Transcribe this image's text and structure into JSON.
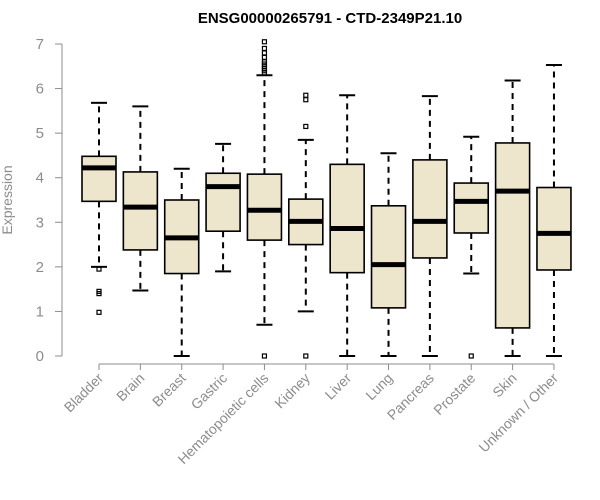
{
  "chart_data": {
    "type": "box",
    "title": "ENSG00000265791 - CTD-2349P21.10",
    "xlabel": "",
    "ylabel": "Expression",
    "ylim": [
      0,
      7
    ],
    "yticks": [
      0,
      1,
      2,
      3,
      4,
      5,
      6,
      7
    ],
    "grid": false,
    "box_color": "#ede6cd",
    "categories": [
      "Bladder",
      "Brain",
      "Breast",
      "Gastric",
      "Hematopoietic cells",
      "Kidney",
      "Liver",
      "Lung",
      "Pancreas",
      "Prostate",
      "Skin",
      "Unknown / Other"
    ],
    "boxes": [
      {
        "min": 2.0,
        "q1": 3.47,
        "median": 4.22,
        "q3": 4.48,
        "max": 5.68,
        "outliers": [
          1.95,
          1.45,
          1.4,
          0.98
        ]
      },
      {
        "min": 1.47,
        "q1": 2.38,
        "median": 3.34,
        "q3": 4.13,
        "max": 5.6,
        "outliers": []
      },
      {
        "min": 0.0,
        "q1": 1.85,
        "median": 2.65,
        "q3": 3.5,
        "max": 4.2,
        "outliers": []
      },
      {
        "min": 1.9,
        "q1": 2.8,
        "median": 3.8,
        "q3": 4.1,
        "max": 4.76,
        "outliers": []
      },
      {
        "min": 0.7,
        "q1": 2.6,
        "median": 3.27,
        "q3": 4.08,
        "max": 6.3,
        "outliers": [
          7.05,
          6.9,
          6.8,
          6.7,
          6.6,
          6.55,
          6.5,
          6.45,
          6.4,
          6.35,
          0.0
        ]
      },
      {
        "min": 1.0,
        "q1": 2.5,
        "median": 3.02,
        "q3": 3.52,
        "max": 4.85,
        "outliers": [
          5.85,
          5.75,
          5.15,
          0.0
        ]
      },
      {
        "min": 0.0,
        "q1": 1.87,
        "median": 2.86,
        "q3": 4.3,
        "max": 5.85,
        "outliers": []
      },
      {
        "min": 0.0,
        "q1": 1.08,
        "median": 2.05,
        "q3": 3.37,
        "max": 4.55,
        "outliers": []
      },
      {
        "min": 0.0,
        "q1": 2.2,
        "median": 3.02,
        "q3": 4.4,
        "max": 5.83,
        "outliers": []
      },
      {
        "min": 1.85,
        "q1": 2.76,
        "median": 3.47,
        "q3": 3.88,
        "max": 4.92,
        "outliers": [
          0.0
        ]
      },
      {
        "min": 0.0,
        "q1": 0.63,
        "median": 3.7,
        "q3": 4.78,
        "max": 6.18,
        "outliers": []
      },
      {
        "min": 0.0,
        "q1": 1.93,
        "median": 2.75,
        "q3": 3.78,
        "max": 6.53,
        "outliers": []
      }
    ]
  }
}
